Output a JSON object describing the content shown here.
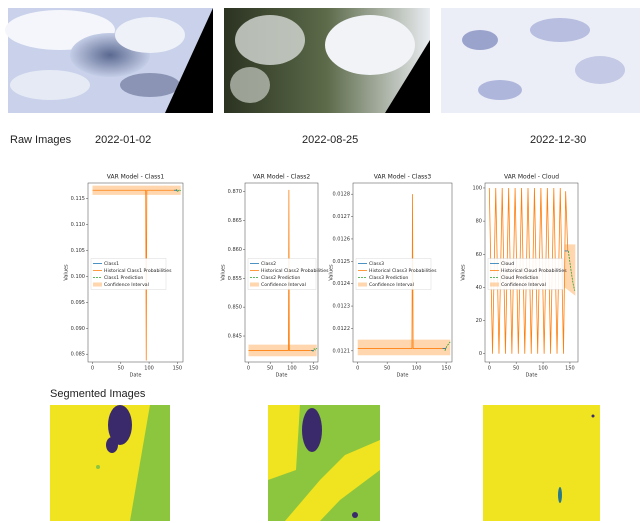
{
  "raw_images": {
    "label": "Raw Images",
    "dates": [
      "2022-01-02",
      "2022-08-25",
      "2022-12-30"
    ]
  },
  "segmented_images": {
    "label": "Segmented Images"
  },
  "chart_data": [
    {
      "type": "line",
      "title": "VAR Model - Class1",
      "x_label": "Date",
      "y_label": "Values",
      "xlim": [
        -8,
        160
      ],
      "xticks": [
        0,
        50,
        100,
        150
      ],
      "ylim": [
        0.0835,
        0.118
      ],
      "yticks": [
        {
          "value": 0.085,
          "label": "0.085"
        },
        {
          "value": 0.09,
          "label": "0.090"
        },
        {
          "value": 0.095,
          "label": "0.095"
        },
        {
          "value": 0.1,
          "label": "0.100"
        },
        {
          "value": 0.105,
          "label": "0.105"
        },
        {
          "value": 0.11,
          "label": "0.110"
        },
        {
          "value": 0.115,
          "label": "0.115"
        }
      ],
      "series": [
        {
          "name": "Class1",
          "color": "#1f77b4",
          "x": [
            144,
            150
          ],
          "values": [
            0.1166,
            0.1166
          ]
        },
        {
          "name": "Historical Class1 Probabilities",
          "color": "#ff7f0e",
          "x": [
            0,
            94,
            95,
            96,
            150
          ],
          "values": [
            0.1166,
            0.1166,
            0.0838,
            0.1166,
            0.1166
          ]
        },
        {
          "name": "Class1 Prediction",
          "color": "#2ca02c",
          "dashed": true,
          "x": [
            148,
            150,
            153,
            156
          ],
          "values": [
            0.1168,
            0.1163,
            0.1167,
            0.1165
          ]
        },
        {
          "name": "Confidence Interval",
          "color": "#ffbb78",
          "x": [
            0,
            156
          ],
          "lower": [
            0.1157,
            0.1157
          ],
          "upper": [
            0.1175,
            0.1175
          ]
        }
      ]
    },
    {
      "type": "line",
      "title": "VAR Model - Class2",
      "x_label": "Date",
      "y_label": "Values",
      "xlim": [
        -8,
        160
      ],
      "xticks": [
        0,
        50,
        100,
        150
      ],
      "ylim": [
        0.8405,
        0.8715
      ],
      "yticks": [
        0.845,
        {
          "value": 0.85,
          "label": "0.850"
        },
        0.855,
        {
          "value": 0.86,
          "label": "0.860"
        },
        0.865,
        {
          "value": 0.87,
          "label": "0.870"
        }
      ],
      "series": [
        {
          "name": "Class2",
          "color": "#1f77b4",
          "x": [
            144,
            150
          ],
          "values": [
            0.8425,
            0.8425
          ]
        },
        {
          "name": "Historical Class2 Probabilities",
          "color": "#ff7f0e",
          "x": [
            0,
            92,
            93,
            94,
            150
          ],
          "values": [
            0.8425,
            0.8425,
            0.8703,
            0.8425,
            0.8425
          ]
        },
        {
          "name": "Class2 Prediction",
          "color": "#2ca02c",
          "dashed": true,
          "x": [
            148,
            151,
            154,
            157
          ],
          "values": [
            0.8423,
            0.8428,
            0.8426,
            0.8429
          ]
        },
        {
          "name": "Confidence Interval",
          "color": "#ffbb78",
          "x": [
            0,
            157
          ],
          "lower": [
            0.8415,
            0.8415
          ],
          "upper": [
            0.8435,
            0.8435
          ]
        }
      ]
    },
    {
      "type": "line",
      "title": "VAR Model - Class3",
      "x_label": "Date",
      "y_label": "Values",
      "xlim": [
        -8,
        160
      ],
      "xticks": [
        0,
        50,
        100,
        150
      ],
      "ylim": [
        0.01205,
        0.01285
      ],
      "yticks": [
        0.0121,
        0.0122,
        0.0123,
        0.0124,
        0.0125,
        0.0126,
        0.0127,
        0.0128
      ],
      "series": [
        {
          "name": "Class3",
          "color": "#1f77b4",
          "x": [
            144,
            150
          ],
          "values": [
            0.01211,
            0.01211
          ]
        },
        {
          "name": "Historical Class3 Probabilities",
          "color": "#ff7f0e",
          "x": [
            0,
            92,
            93,
            94,
            150
          ],
          "values": [
            0.01211,
            0.01211,
            0.0128,
            0.01211,
            0.01211
          ]
        },
        {
          "name": "Class3 Prediction",
          "color": "#2ca02c",
          "dashed": true,
          "x": [
            148,
            151,
            154,
            157
          ],
          "values": [
            0.0121,
            0.01212,
            0.01213,
            0.01214
          ]
        },
        {
          "name": "Confidence Interval",
          "color": "#ffbb78",
          "x": [
            0,
            157
          ],
          "lower": [
            0.01208,
            0.01208
          ],
          "upper": [
            0.01215,
            0.01215
          ]
        }
      ]
    },
    {
      "type": "line",
      "title": "VAR Model - Cloud",
      "x_label": "Date",
      "y_label": "Values",
      "xlim": [
        -8,
        165
      ],
      "xticks": [
        0,
        50,
        100,
        150
      ],
      "ylim": [
        -5,
        103
      ],
      "yticks": [
        0,
        20,
        40,
        60,
        80,
        100
      ],
      "series": [
        {
          "name": "Cloud",
          "color": "#1f77b4",
          "x": [
            140,
            146
          ],
          "values": [
            62,
            62
          ]
        },
        {
          "name": "Historical Cloud Probabilities",
          "color": "#ff7f0e",
          "x": [
            0,
            6,
            12,
            18,
            24,
            30,
            36,
            42,
            48,
            54,
            60,
            66,
            72,
            78,
            84,
            90,
            96,
            102,
            108,
            114,
            120,
            126,
            132,
            138,
            142,
            146
          ],
          "values": [
            100,
            0,
            100,
            0,
            100,
            0,
            100,
            0,
            100,
            0,
            100,
            0,
            100,
            0,
            100,
            0,
            100,
            0,
            100,
            0,
            100,
            0,
            100,
            0,
            98,
            62
          ]
        },
        {
          "name": "Cloud Prediction",
          "color": "#2ca02c",
          "dashed": true,
          "x": [
            147,
            150,
            153,
            156,
            159
          ],
          "values": [
            62,
            55,
            48,
            42,
            38
          ]
        },
        {
          "name": "Confidence Interval",
          "color": "#ffbb78",
          "x": [
            140,
            160
          ],
          "lower": [
            40,
            35
          ],
          "upper": [
            66,
            66
          ]
        }
      ]
    }
  ]
}
